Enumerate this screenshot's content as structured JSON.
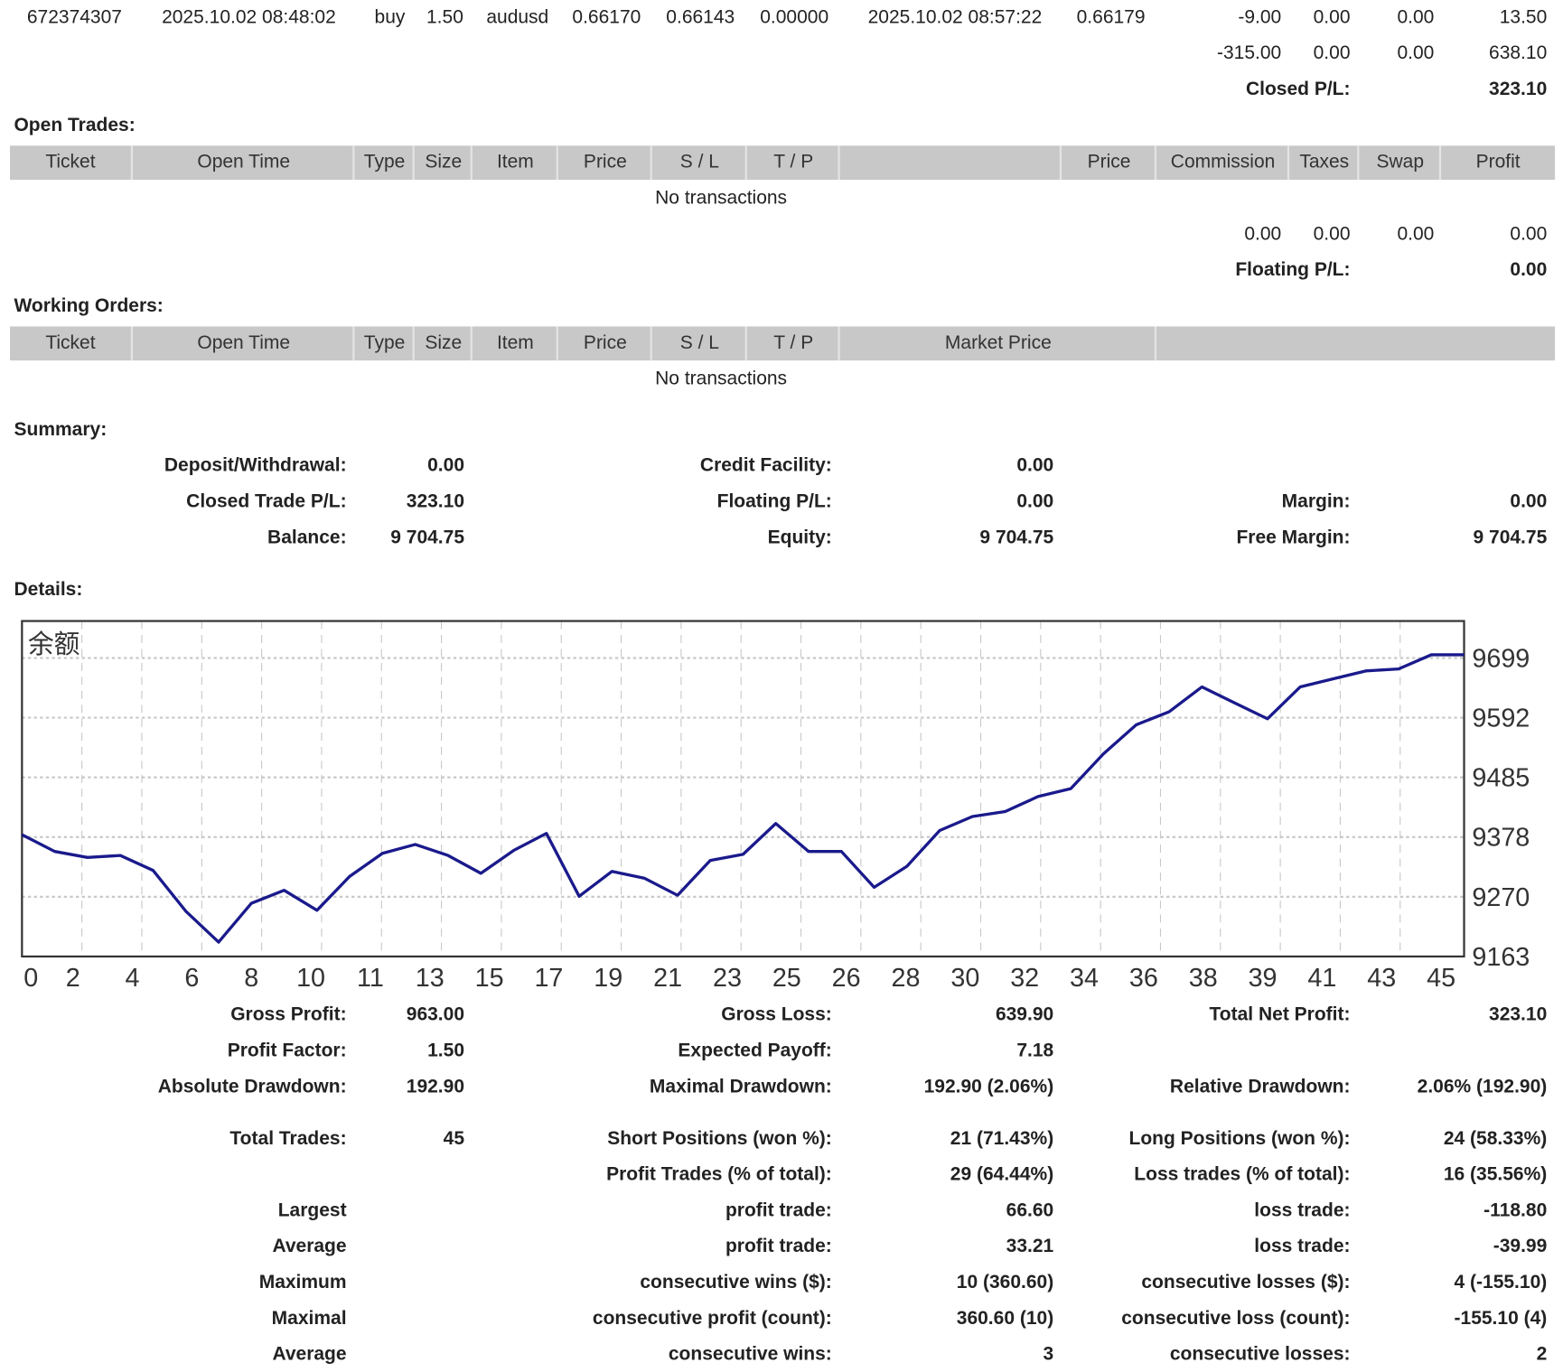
{
  "closed_trade": {
    "ticket": "672374307",
    "open_time": "2025.10.02 08:48:02",
    "type": "buy",
    "size": "1.50",
    "item": "audusd",
    "price": "0.66170",
    "sl": "0.66143",
    "tp": "0.00000",
    "close_time": "2025.10.02 08:57:22",
    "close_price": "0.66179",
    "commission": "-9.00",
    "taxes": "0.00",
    "swap": "0.00",
    "profit": "13.50"
  },
  "closed_totals": {
    "commission": "-315.00",
    "taxes": "0.00",
    "swap": "0.00",
    "profit": "638.10",
    "label": "Closed P/L:",
    "value": "323.10"
  },
  "open_trades": {
    "title": "Open Trades:",
    "columns": [
      "Ticket",
      "Open Time",
      "Type",
      "Size",
      "Item",
      "Price",
      "S / L",
      "T / P",
      "",
      "Price",
      "Commission",
      "Taxes",
      "Swap",
      "Profit"
    ],
    "empty": "No transactions",
    "totals": {
      "commission": "0.00",
      "taxes": "0.00",
      "swap": "0.00",
      "profit": "0.00"
    },
    "pl_label": "Floating P/L:",
    "pl_value": "0.00"
  },
  "working_orders": {
    "title": "Working Orders:",
    "columns": [
      "Ticket",
      "Open Time",
      "Type",
      "Size",
      "Item",
      "Price",
      "S / L",
      "T / P",
      "Market Price",
      ""
    ],
    "empty": "No transactions"
  },
  "summary": {
    "title": "Summary:",
    "rows": [
      [
        [
          "Deposit/Withdrawal:",
          "0.00"
        ],
        [
          "Credit Facility:",
          "0.00"
        ],
        [
          "",
          ""
        ]
      ],
      [
        [
          "Closed Trade P/L:",
          "323.10"
        ],
        [
          "Floating P/L:",
          "0.00"
        ],
        [
          "Margin:",
          "0.00"
        ]
      ],
      [
        [
          "Balance:",
          "9 704.75"
        ],
        [
          "Equity:",
          "9 704.75"
        ],
        [
          "Free Margin:",
          "9 704.75"
        ]
      ]
    ]
  },
  "details": {
    "title": "Details:",
    "rows": [
      [
        [
          "Gross Profit:",
          "963.00"
        ],
        [
          "Gross Loss:",
          "639.90"
        ],
        [
          "Total Net Profit:",
          "323.10"
        ]
      ],
      [
        [
          "Profit Factor:",
          "1.50"
        ],
        [
          "Expected Payoff:",
          "7.18"
        ],
        [
          "",
          ""
        ]
      ],
      [
        [
          "Absolute Drawdown:",
          "192.90"
        ],
        [
          "Maximal Drawdown:",
          "192.90 (2.06%)"
        ],
        [
          "Relative Drawdown:",
          "2.06% (192.90)"
        ]
      ],
      [
        [
          "Total Trades:",
          "45"
        ],
        [
          "Short Positions (won %):",
          "21 (71.43%)"
        ],
        [
          "Long Positions (won %):",
          "24 (58.33%)"
        ]
      ],
      [
        [
          "",
          ""
        ],
        [
          "Profit Trades (% of total):",
          "29 (64.44%)"
        ],
        [
          "Loss trades (% of total):",
          "16 (35.56%)"
        ]
      ],
      [
        [
          "Largest",
          ""
        ],
        [
          "profit trade:",
          "66.60"
        ],
        [
          "loss trade:",
          "-118.80"
        ]
      ],
      [
        [
          "Average",
          ""
        ],
        [
          "profit trade:",
          "33.21"
        ],
        [
          "loss trade:",
          "-39.99"
        ]
      ],
      [
        [
          "Maximum",
          ""
        ],
        [
          "consecutive wins ($):",
          "10 (360.60)"
        ],
        [
          "consecutive losses ($):",
          "4 (-155.10)"
        ]
      ],
      [
        [
          "Maximal",
          ""
        ],
        [
          "consecutive profit (count):",
          "360.60 (10)"
        ],
        [
          "consecutive loss (count):",
          "-155.10 (4)"
        ]
      ],
      [
        [
          "Average",
          ""
        ],
        [
          "consecutive wins:",
          "3"
        ],
        [
          "consecutive losses:",
          "2"
        ]
      ]
    ]
  },
  "chart_data": {
    "type": "line",
    "title": "余额",
    "line_color": "#1a1a8c",
    "grid": true,
    "ylim": [
      9163,
      9699
    ],
    "yticks": [
      "9699",
      "9592",
      "9485",
      "9378",
      "9270",
      "9163"
    ],
    "xtick_labels": [
      "0",
      "2",
      "4",
      "6",
      "8",
      "10",
      "11",
      "13",
      "15",
      "17",
      "19",
      "21",
      "23",
      "25",
      "26",
      "28",
      "30",
      "32",
      "34",
      "36",
      "38",
      "39",
      "41",
      "43",
      "45"
    ],
    "values": [
      9381.65,
      9351.6,
      9340.9,
      9344.5,
      9317.6,
      9244.2,
      9188.75,
      9258.5,
      9281.8,
      9246.0,
      9306.9,
      9348.1,
      9364.2,
      9344.5,
      9312.3,
      9353.4,
      9384.0,
      9271.1,
      9315.8,
      9303.3,
      9272.9,
      9335.5,
      9346.3,
      9401.8,
      9351.6,
      9351.6,
      9287.2,
      9324.8,
      9389.2,
      9414.3,
      9423.3,
      9450.1,
      9464.4,
      9527.1,
      9579.0,
      9602.3,
      9647.1,
      9618.4,
      9589.8,
      9647.1,
      9661.4,
      9675.7,
      9679.3,
      9704.75,
      9704.75
    ]
  }
}
